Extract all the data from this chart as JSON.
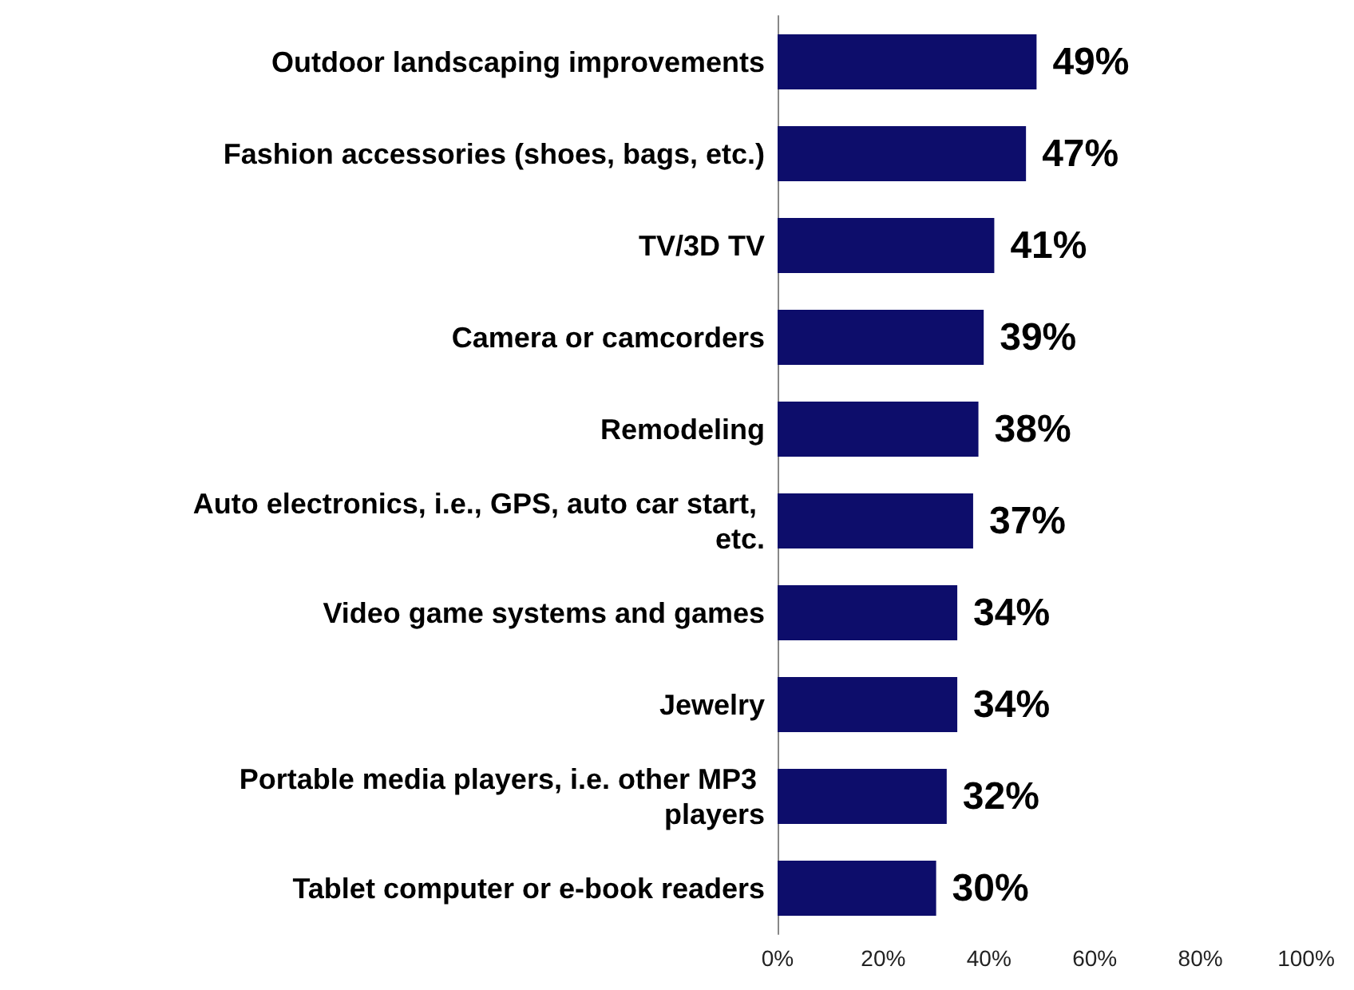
{
  "chart_data": {
    "type": "bar",
    "orientation": "horizontal",
    "categories": [
      "Outdoor landscaping improvements",
      "Fashion accessories (shoes, bags, etc.)",
      "TV/3D TV",
      "Camera or camcorders",
      "Remodeling",
      "Auto electronics, i.e., GPS, auto car start, etc.",
      "Video game systems and games",
      "Jewelry",
      "Portable media players, i.e. other MP3 players",
      "Tablet computer or e-book readers"
    ],
    "values": [
      49,
      47,
      41,
      39,
      38,
      37,
      34,
      34,
      32,
      30
    ],
    "value_labels": [
      "49%",
      "47%",
      "41%",
      "39%",
      "38%",
      "37%",
      "34%",
      "34%",
      "32%",
      "30%"
    ],
    "color": "#0d0d6b",
    "xlim": [
      0,
      100
    ],
    "xticks": [
      {
        "value": 0,
        "label": "0%"
      },
      {
        "value": 20,
        "label": "20%"
      },
      {
        "value": 40,
        "label": "40%"
      },
      {
        "value": 60,
        "label": "60%"
      },
      {
        "value": 80,
        "label": "80%"
      },
      {
        "value": 100,
        "label": "100%"
      }
    ],
    "grid": false
  }
}
